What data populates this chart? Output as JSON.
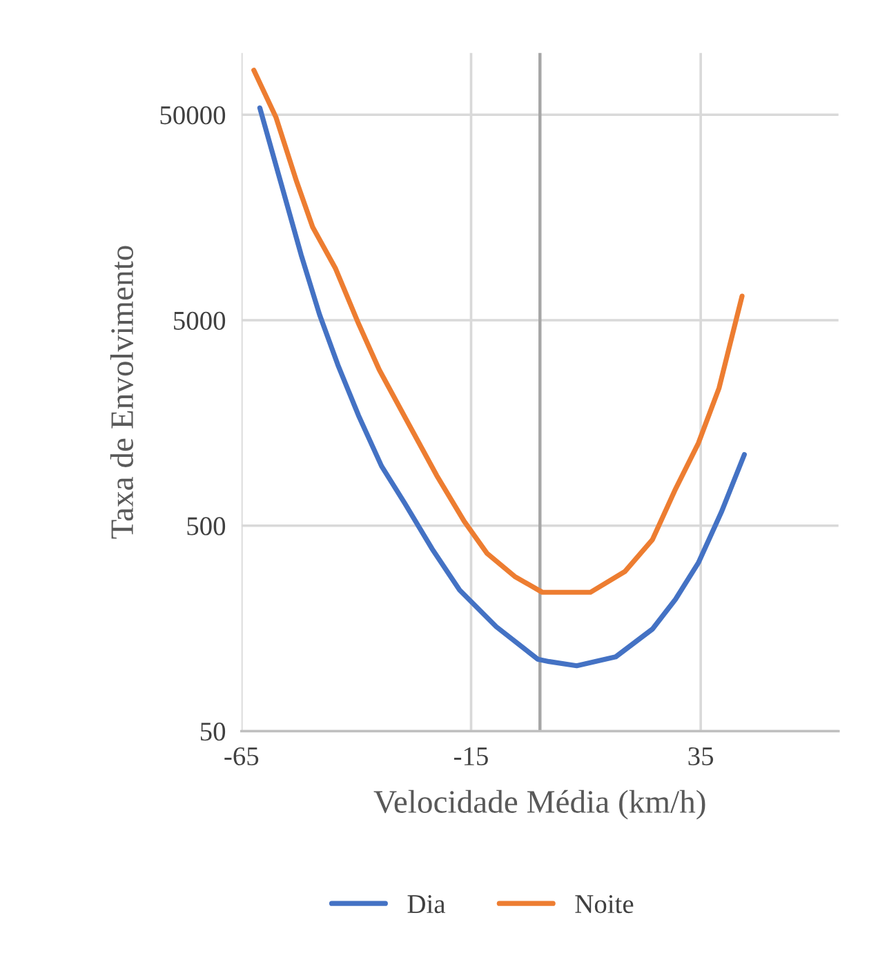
{
  "chart_data": {
    "type": "line",
    "xlabel": "Velocidade Média (km/h)",
    "ylabel": "Taxa de Envolvimento",
    "log": "y",
    "xlim": [
      -65,
      65
    ],
    "xticks": [
      -65,
      -15,
      35
    ],
    "ylim": [
      50,
      100000
    ],
    "yticks": [
      50,
      500,
      5000,
      50000
    ],
    "grid": true,
    "legend": "bottom",
    "marker": "none",
    "line_style": "solid",
    "ref_lines": [
      {
        "axis": "x",
        "value": 0,
        "color": "#a6a6a6"
      }
    ],
    "series": [
      {
        "name": "Dia",
        "color": "#4472c4",
        "x": [
          -61.0,
          -56.5,
          -52.0,
          -48.0,
          -44.0,
          -39.5,
          -34.5,
          -29.5,
          -23.5,
          -17.5,
          -9.5,
          -0.5,
          2.0,
          8.0,
          16.5,
          24.5,
          29.5,
          34.5,
          39.5,
          44.5
        ],
        "values": [
          54000,
          23700,
          10400,
          5330,
          3030,
          1717,
          975,
          646,
          386,
          243,
          161,
          112,
          109,
          104,
          115,
          157,
          219,
          330,
          582,
          1109
        ]
      },
      {
        "name": "Noite",
        "color": "#ed7d31",
        "x": [
          -62.3,
          -57.5,
          -53.0,
          -49.5,
          -44.5,
          -39.5,
          -35.0,
          -28.5,
          -22.5,
          -16.5,
          -11.5,
          -5.5,
          0.5,
          4.5,
          11.0,
          18.5,
          24.5,
          29.5,
          34.5,
          39.0,
          44.0
        ],
        "values": [
          82400,
          48700,
          23700,
          14200,
          8910,
          4810,
          2870,
          1550,
          879,
          525,
          366,
          283,
          237,
          237,
          237,
          299,
          428,
          753,
          1262,
          2340,
          6550
        ]
      }
    ]
  }
}
